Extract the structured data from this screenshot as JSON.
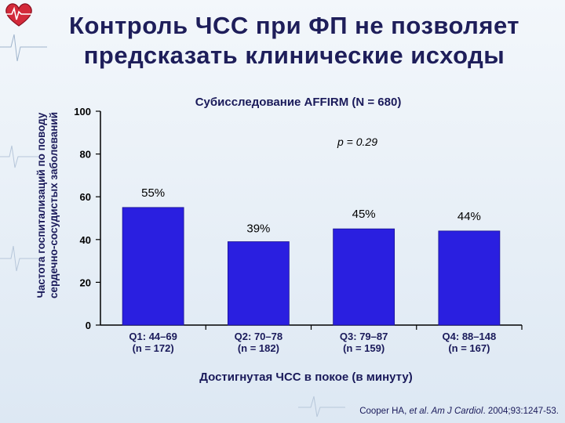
{
  "title_line1": "Контроль ЧСС при ФП не позволяет",
  "title_line2": "предсказать клинические исходы",
  "chart_data": {
    "type": "bar",
    "subtitle": "Субисследование AFFIRM  (N = 680)",
    "annotation": "p = 0.29",
    "ylabel_line1": "Частота госпитализаций по поводу",
    "ylabel_line2": "сердечно-сосудистых заболеваний",
    "xlabel": "Достигнутая ЧСС в покое (в минуту)",
    "ylim": [
      0,
      100
    ],
    "yticks": [
      0,
      20,
      40,
      60,
      80,
      100
    ],
    "categories": [
      {
        "line1": "Q1: 44–69",
        "line2": "(n = 172)"
      },
      {
        "line1": "Q2: 70–78",
        "line2": "(n = 182)"
      },
      {
        "line1": "Q3: 79–87",
        "line2": "(n = 159)"
      },
      {
        "line1": "Q4: 88–148",
        "line2": "(n = 167)"
      }
    ],
    "values": [
      55,
      39,
      45,
      44
    ],
    "value_labels": [
      "55%",
      "39%",
      "45%",
      "44%"
    ],
    "bar_color": "#2a1fe0"
  },
  "citation": {
    "authors": "Cooper HA, ",
    "etal": "et al",
    "dot": ". ",
    "journal": "Am J Cardiol",
    "rest": ". 2004;93:1247-53."
  }
}
